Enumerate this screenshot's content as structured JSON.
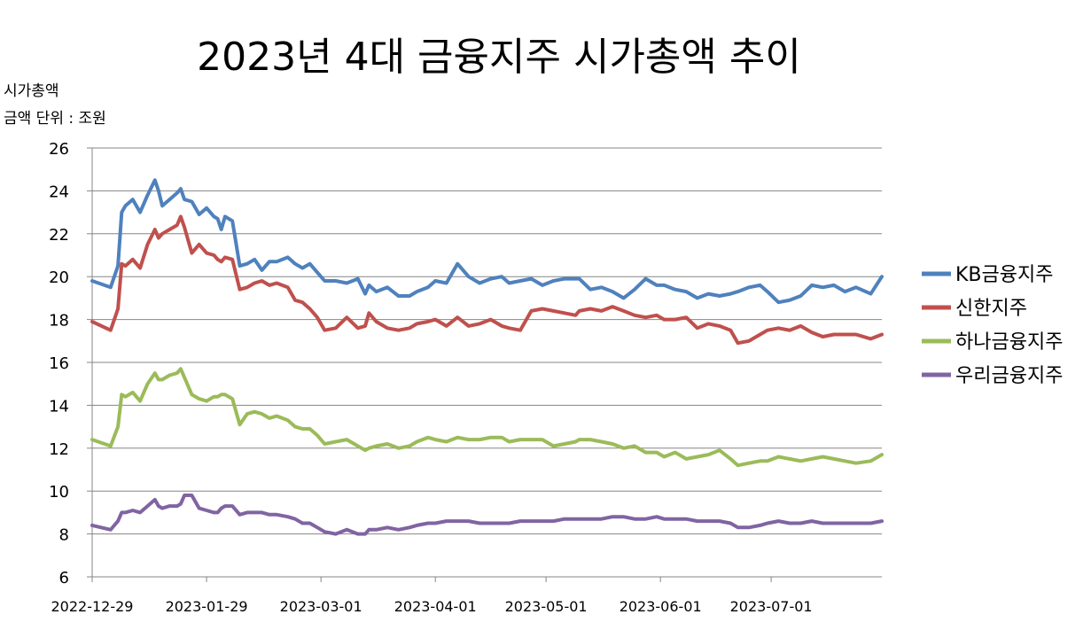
{
  "chart_data": {
    "type": "line",
    "title": "2023년 4대 금융지주 시가총액 추이",
    "ylabel": "시가총액",
    "ylabel_unit": "금액 단위 : 조원",
    "ylim": [
      6,
      26
    ],
    "yticks": [
      6,
      8,
      10,
      12,
      14,
      16,
      18,
      20,
      22,
      24,
      26
    ],
    "xlim": [
      "2022-12-29",
      "2023-07-31"
    ],
    "xticks": [
      "2022-12-29",
      "2023-01-29",
      "2023-03-01",
      "2023-04-01",
      "2023-05-01",
      "2023-06-01",
      "2023-07-01"
    ],
    "grid": "horizontal",
    "legend_position": "right",
    "x": [
      "2022-12-29",
      "2023-01-03",
      "2023-01-05",
      "2023-01-06",
      "2023-01-07",
      "2023-01-09",
      "2023-01-11",
      "2023-01-13",
      "2023-01-15",
      "2023-01-16",
      "2023-01-17",
      "2023-01-19",
      "2023-01-21",
      "2023-01-22",
      "2023-01-23",
      "2023-01-25",
      "2023-01-27",
      "2023-01-29",
      "2023-01-31",
      "2023-02-01",
      "2023-02-02",
      "2023-02-03",
      "2023-02-05",
      "2023-02-07",
      "2023-02-09",
      "2023-02-11",
      "2023-02-13",
      "2023-02-15",
      "2023-02-17",
      "2023-02-20",
      "2023-02-22",
      "2023-02-24",
      "2023-02-26",
      "2023-02-28",
      "2023-03-02",
      "2023-03-05",
      "2023-03-08",
      "2023-03-11",
      "2023-03-13",
      "2023-03-14",
      "2023-03-16",
      "2023-03-19",
      "2023-03-22",
      "2023-03-25",
      "2023-03-27",
      "2023-03-30",
      "2023-04-01",
      "2023-04-04",
      "2023-04-07",
      "2023-04-10",
      "2023-04-13",
      "2023-04-16",
      "2023-04-19",
      "2023-04-21",
      "2023-04-24",
      "2023-04-27",
      "2023-04-30",
      "2023-05-03",
      "2023-05-06",
      "2023-05-09",
      "2023-05-10",
      "2023-05-13",
      "2023-05-16",
      "2023-05-19",
      "2023-05-22",
      "2023-05-25",
      "2023-05-28",
      "2023-05-31",
      "2023-06-02",
      "2023-06-05",
      "2023-06-08",
      "2023-06-11",
      "2023-06-14",
      "2023-06-17",
      "2023-06-20",
      "2023-06-22",
      "2023-06-25",
      "2023-06-28",
      "2023-06-30",
      "2023-07-03",
      "2023-07-06",
      "2023-07-09",
      "2023-07-12",
      "2023-07-15",
      "2023-07-18",
      "2023-07-21",
      "2023-07-24",
      "2023-07-28",
      "2023-07-31"
    ],
    "series": [
      {
        "name": "KB금융지주",
        "color": "#4F81BD",
        "values": [
          19.8,
          19.5,
          20.5,
          23.0,
          23.3,
          23.6,
          23.0,
          23.8,
          24.5,
          24.0,
          23.3,
          23.6,
          23.9,
          24.1,
          23.6,
          23.5,
          22.9,
          23.2,
          22.8,
          22.7,
          22.2,
          22.8,
          22.6,
          20.5,
          20.6,
          20.8,
          20.3,
          20.7,
          20.7,
          20.9,
          20.6,
          20.4,
          20.6,
          20.2,
          19.8,
          19.8,
          19.7,
          19.9,
          19.2,
          19.6,
          19.3,
          19.5,
          19.1,
          19.1,
          19.3,
          19.5,
          19.8,
          19.7,
          20.6,
          20.0,
          19.7,
          19.9,
          20.0,
          19.7,
          19.8,
          19.9,
          19.6,
          19.8,
          19.9,
          19.9,
          19.9,
          19.4,
          19.5,
          19.3,
          19.0,
          19.4,
          19.9,
          19.6,
          19.6,
          19.4,
          19.3,
          19.0,
          19.2,
          19.1,
          19.2,
          19.3,
          19.5,
          19.6,
          19.3,
          18.8,
          18.9,
          19.1,
          19.6,
          19.5,
          19.6,
          19.3,
          19.5,
          19.2,
          20.0
        ]
      },
      {
        "name": "신한지주",
        "color": "#C0504D",
        "values": [
          17.9,
          17.5,
          18.5,
          20.6,
          20.5,
          20.8,
          20.4,
          21.5,
          22.2,
          21.8,
          22.0,
          22.2,
          22.4,
          22.8,
          22.3,
          21.1,
          21.5,
          21.1,
          21.0,
          20.8,
          20.7,
          20.9,
          20.8,
          19.4,
          19.5,
          19.7,
          19.8,
          19.6,
          19.7,
          19.5,
          18.9,
          18.8,
          18.5,
          18.1,
          17.5,
          17.6,
          18.1,
          17.6,
          17.7,
          18.3,
          17.9,
          17.6,
          17.5,
          17.6,
          17.8,
          17.9,
          18.0,
          17.7,
          18.1,
          17.7,
          17.8,
          18.0,
          17.7,
          17.6,
          17.5,
          18.4,
          18.5,
          18.4,
          18.3,
          18.2,
          18.4,
          18.5,
          18.4,
          18.6,
          18.4,
          18.2,
          18.1,
          18.2,
          18.0,
          18.0,
          18.1,
          17.6,
          17.8,
          17.7,
          17.5,
          16.9,
          17.0,
          17.3,
          17.5,
          17.6,
          17.5,
          17.7,
          17.4,
          17.2,
          17.3,
          17.3,
          17.3,
          17.1,
          17.3
        ]
      },
      {
        "name": "하나금융지주",
        "color": "#9BBB59",
        "values": [
          12.4,
          12.1,
          13.0,
          14.5,
          14.4,
          14.6,
          14.2,
          15.0,
          15.5,
          15.2,
          15.2,
          15.4,
          15.5,
          15.7,
          15.3,
          14.5,
          14.3,
          14.2,
          14.4,
          14.4,
          14.5,
          14.5,
          14.3,
          13.1,
          13.6,
          13.7,
          13.6,
          13.4,
          13.5,
          13.3,
          13.0,
          12.9,
          12.9,
          12.6,
          12.2,
          12.3,
          12.4,
          12.1,
          11.9,
          12.0,
          12.1,
          12.2,
          12.0,
          12.1,
          12.3,
          12.5,
          12.4,
          12.3,
          12.5,
          12.4,
          12.4,
          12.5,
          12.5,
          12.3,
          12.4,
          12.4,
          12.4,
          12.1,
          12.2,
          12.3,
          12.4,
          12.4,
          12.3,
          12.2,
          12.0,
          12.1,
          11.8,
          11.8,
          11.6,
          11.8,
          11.5,
          11.6,
          11.7,
          11.9,
          11.5,
          11.2,
          11.3,
          11.4,
          11.4,
          11.6,
          11.5,
          11.4,
          11.5,
          11.6,
          11.5,
          11.4,
          11.3,
          11.4,
          11.7
        ]
      },
      {
        "name": "우리금융지주",
        "color": "#8064A2",
        "values": [
          8.4,
          8.2,
          8.6,
          9.0,
          9.0,
          9.1,
          9.0,
          9.3,
          9.6,
          9.3,
          9.2,
          9.3,
          9.3,
          9.4,
          9.8,
          9.8,
          9.2,
          9.1,
          9.0,
          9.0,
          9.2,
          9.3,
          9.3,
          8.9,
          9.0,
          9.0,
          9.0,
          8.9,
          8.9,
          8.8,
          8.7,
          8.5,
          8.5,
          8.3,
          8.1,
          8.0,
          8.2,
          8.0,
          8.0,
          8.2,
          8.2,
          8.3,
          8.2,
          8.3,
          8.4,
          8.5,
          8.5,
          8.6,
          8.6,
          8.6,
          8.5,
          8.5,
          8.5,
          8.5,
          8.6,
          8.6,
          8.6,
          8.6,
          8.7,
          8.7,
          8.7,
          8.7,
          8.7,
          8.8,
          8.8,
          8.7,
          8.7,
          8.8,
          8.7,
          8.7,
          8.7,
          8.6,
          8.6,
          8.6,
          8.5,
          8.3,
          8.3,
          8.4,
          8.5,
          8.6,
          8.5,
          8.5,
          8.6,
          8.5,
          8.5,
          8.5,
          8.5,
          8.5,
          8.6
        ]
      }
    ]
  }
}
